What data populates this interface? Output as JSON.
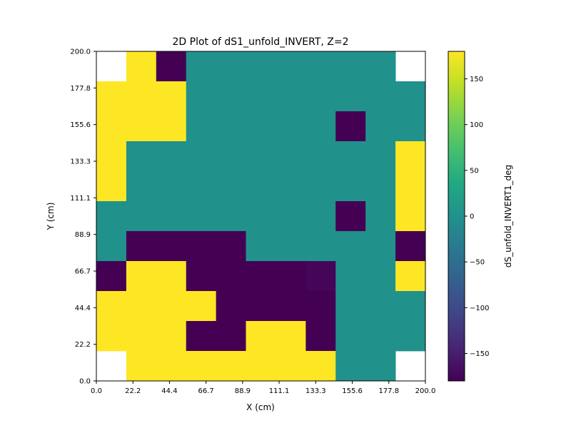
{
  "chart_data": {
    "type": "heatmap",
    "title": "2D Plot of dS1_unfold_INVERT, Z=2",
    "xlabel": "X (cm)",
    "ylabel": "Y (cm)",
    "colorbar_label": "dS_unfold_INVERT1_deg",
    "colormap": "viridis",
    "vmin": -180,
    "vmax": 180,
    "xlim": [
      0,
      200
    ],
    "ylim": [
      0,
      200
    ],
    "x_ticks": [
      "0.0",
      "22.2",
      "44.4",
      "66.7",
      "88.9",
      "111.1",
      "133.3",
      "155.6",
      "177.8",
      "200.0"
    ],
    "y_ticks": [
      "0.0",
      "22.2",
      "44.4",
      "66.7",
      "88.9",
      "111.1",
      "133.3",
      "155.6",
      "177.8",
      "200.0"
    ],
    "colorbar_ticks": [
      "150",
      "100",
      "50",
      "0",
      "−50",
      "−100",
      "−150"
    ],
    "colorbar_tick_values": [
      150,
      100,
      50,
      0,
      -50,
      -100,
      -150
    ],
    "x_edges": [
      0,
      18.18,
      36.36,
      54.55,
      72.73,
      90.91,
      109.09,
      127.27,
      145.45,
      163.64,
      181.82,
      200
    ],
    "y_edges": [
      0,
      18.18,
      36.36,
      54.55,
      72.73,
      90.91,
      109.09,
      127.27,
      145.45,
      163.64,
      181.82,
      200
    ],
    "grid": false,
    "values_top_to_bottom": [
      [
        null,
        180,
        -180,
        0,
        0,
        0,
        0,
        0,
        0,
        0,
        null
      ],
      [
        180,
        180,
        180,
        0,
        0,
        0,
        0,
        0,
        0,
        0,
        0
      ],
      [
        180,
        180,
        180,
        0,
        0,
        0,
        0,
        0,
        -180,
        0,
        0
      ],
      [
        180,
        0,
        0,
        0,
        0,
        0,
        0,
        0,
        0,
        0,
        180
      ],
      [
        180,
        0,
        0,
        0,
        0,
        0,
        0,
        0,
        0,
        0,
        180
      ],
      [
        0,
        0,
        0,
        0,
        0,
        0,
        0,
        0,
        -180,
        0,
        180
      ],
      [
        0,
        -180,
        -180,
        -180,
        -180,
        0,
        0,
        0,
        0,
        0,
        -180
      ],
      [
        -180,
        180,
        180,
        -180,
        -180,
        -180,
        -180,
        -175,
        0,
        0,
        180
      ],
      [
        180,
        180,
        180,
        180,
        -180,
        -180,
        -180,
        -180,
        0,
        0,
        0
      ],
      [
        180,
        180,
        180,
        -180,
        -180,
        180,
        180,
        -180,
        0,
        0,
        0
      ],
      [
        null,
        180,
        180,
        180,
        180,
        180,
        180,
        180,
        0,
        0,
        null
      ]
    ]
  }
}
